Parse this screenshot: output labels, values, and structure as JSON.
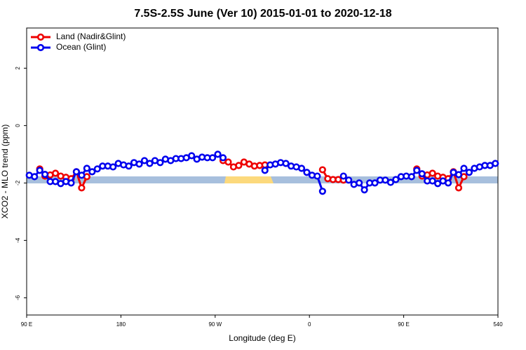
{
  "chart_data": {
    "type": "line",
    "title": "7.5S-2.5S June (Ver 10)   2015-01-01 to 2020-12-18",
    "xlabel": "Longitude (deg E)",
    "ylabel": "XCO2 - MLO trend (ppm)",
    "x": [
      92.5,
      97.5,
      102.5,
      107.5,
      112.5,
      117.5,
      122.5,
      127.5,
      132.5,
      137.5,
      142.5,
      147.5,
      152.5,
      157.5,
      162.5,
      167.5,
      172.5,
      177.5,
      182.5,
      187.5,
      192.5,
      197.5,
      202.5,
      207.5,
      212.5,
      217.5,
      222.5,
      227.5,
      232.5,
      237.5,
      242.5,
      247.5,
      252.5,
      257.5,
      262.5,
      267.5,
      272.5,
      277.5,
      282.5,
      287.5,
      292.5,
      297.5,
      302.5,
      307.5,
      312.5,
      317.5,
      322.5,
      327.5,
      332.5,
      337.5,
      342.5,
      347.5,
      352.5,
      357.5,
      362.5,
      367.5,
      372.5,
      377.5,
      382.5,
      387.5,
      392.5,
      397.5,
      402.5,
      407.5,
      412.5,
      417.5,
      422.5,
      427.5,
      432.5,
      437.5,
      442.5,
      447.5,
      452.5,
      457.5,
      462.5,
      467.5,
      472.5,
      477.5,
      482.5,
      487.5,
      492.5,
      497.5,
      502.5,
      507.5,
      512.5,
      517.5,
      522.5,
      527.5,
      532.5,
      537.5
    ],
    "series": [
      {
        "name": "Land (Nadir&Glint)",
        "color": "#ee0000",
        "values": [
          null,
          null,
          -1.51,
          -1.76,
          -1.72,
          -1.66,
          -1.76,
          -1.8,
          -1.85,
          -1.61,
          -2.17,
          -1.78,
          null,
          null,
          null,
          null,
          null,
          null,
          null,
          null,
          null,
          null,
          null,
          null,
          null,
          null,
          null,
          null,
          null,
          null,
          null,
          null,
          null,
          null,
          null,
          null,
          null,
          -1.22,
          -1.27,
          -1.44,
          -1.39,
          -1.27,
          -1.34,
          -1.41,
          -1.39,
          -1.37,
          null,
          null,
          null,
          null,
          null,
          null,
          null,
          null,
          null,
          null,
          -1.54,
          -1.85,
          -1.88,
          -1.88,
          -1.9,
          null,
          null,
          null,
          null,
          null,
          null,
          null,
          null,
          null,
          null,
          null,
          null,
          null,
          -1.51,
          -1.76,
          -1.72,
          -1.66,
          -1.76,
          -1.8,
          -1.85,
          -1.61,
          -2.17,
          -1.78,
          null,
          null,
          null,
          null,
          null,
          null
        ]
      },
      {
        "name": "Ocean (Glint)",
        "color": "#0000ee",
        "values": [
          -1.73,
          -1.78,
          -1.56,
          -1.7,
          -1.95,
          -1.95,
          -2.02,
          -1.95,
          -2.0,
          -1.61,
          -1.73,
          -1.49,
          -1.61,
          -1.51,
          -1.41,
          -1.41,
          -1.44,
          -1.32,
          -1.37,
          -1.41,
          -1.29,
          -1.34,
          -1.22,
          -1.32,
          -1.22,
          -1.29,
          -1.17,
          -1.22,
          -1.15,
          -1.15,
          -1.12,
          -1.05,
          -1.17,
          -1.1,
          -1.12,
          -1.12,
          -1.0,
          -1.12,
          null,
          null,
          null,
          null,
          null,
          null,
          null,
          -1.56,
          -1.37,
          -1.34,
          -1.29,
          -1.32,
          -1.41,
          -1.44,
          -1.49,
          -1.63,
          -1.73,
          -1.76,
          -2.29,
          null,
          null,
          null,
          -1.76,
          -1.9,
          -2.05,
          -2.0,
          -2.24,
          -2.0,
          -2.0,
          -1.9,
          -1.9,
          -1.98,
          -1.88,
          -1.78,
          -1.76,
          -1.78,
          -1.56,
          -1.68,
          -1.93,
          -1.93,
          -2.02,
          -1.93,
          -2.0,
          -1.63,
          -1.71,
          -1.49,
          -1.63,
          -1.49,
          -1.44,
          -1.39,
          -1.39,
          -1.32
        ]
      }
    ],
    "xlim": [
      90,
      540
    ],
    "xticks": [
      {
        "value": 90,
        "label": "90 E"
      },
      180,
      {
        "value": 270,
        "label": "90 W"
      },
      {
        "value": 360,
        "label": "0"
      },
      {
        "value": 450,
        "label": "90 E"
      },
      540
    ],
    "ylim": [
      -6.6,
      3.4
    ],
    "yticks": [
      2,
      0,
      -2,
      -4,
      -6
    ],
    "legend": "top-left"
  }
}
